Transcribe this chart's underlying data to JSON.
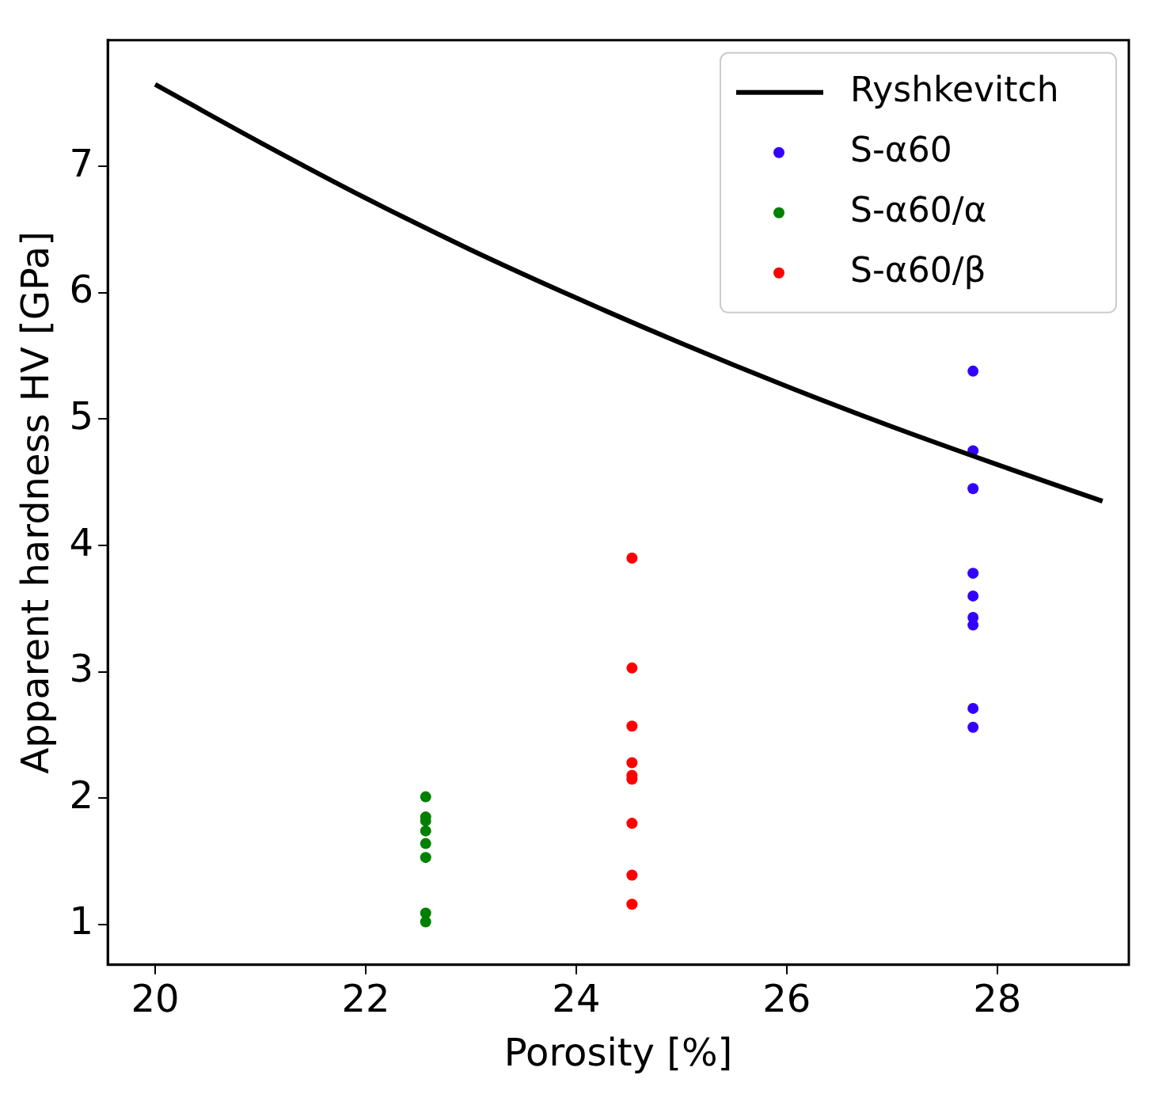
{
  "chart_data": {
    "type": "scatter",
    "xlabel": "Porosity [%]",
    "ylabel": "Apparent hardness HV [GPa]",
    "xlim": [
      19.55,
      29.25
    ],
    "xticks": [
      20,
      22,
      24,
      26,
      28
    ],
    "ylim": [
      0.68,
      8.0
    ],
    "yticks": [
      1,
      2,
      3,
      4,
      5,
      6,
      7
    ],
    "grid": false,
    "legend": "top right",
    "marker": "circle",
    "series": [
      {
        "name": "Ryshkevitch",
        "type": "line",
        "color": "#000000",
        "line_style": "solid",
        "marker": "none",
        "x": [
          20,
          21,
          22,
          23,
          24,
          25,
          26,
          27,
          28,
          29
        ],
        "values": [
          7.65,
          7.19,
          6.75,
          6.34,
          5.96,
          5.6,
          5.26,
          4.94,
          4.64,
          4.35
        ]
      },
      {
        "name": "S-α60",
        "color": "#3300ff",
        "x": [
          27.77,
          27.77,
          27.77,
          27.77,
          27.77,
          27.77,
          27.77,
          27.77,
          27.77
        ],
        "values": [
          5.38,
          4.75,
          4.45,
          3.78,
          3.6,
          3.43,
          3.37,
          2.71,
          2.56
        ]
      },
      {
        "name": "S-α60/α",
        "color": "#008000",
        "x": [
          22.57,
          22.57,
          22.57,
          22.57,
          22.57,
          22.57,
          22.57,
          22.57
        ],
        "values": [
          2.01,
          1.85,
          1.82,
          1.74,
          1.64,
          1.53,
          1.09,
          1.02
        ]
      },
      {
        "name": "S-α60/β",
        "color": "#ff0000",
        "x": [
          24.53,
          24.53,
          24.53,
          24.53,
          24.53,
          24.53,
          24.53,
          24.53,
          24.53
        ],
        "values": [
          3.9,
          3.03,
          2.57,
          2.28,
          2.18,
          2.15,
          1.8,
          1.39,
          1.16
        ]
      }
    ]
  }
}
